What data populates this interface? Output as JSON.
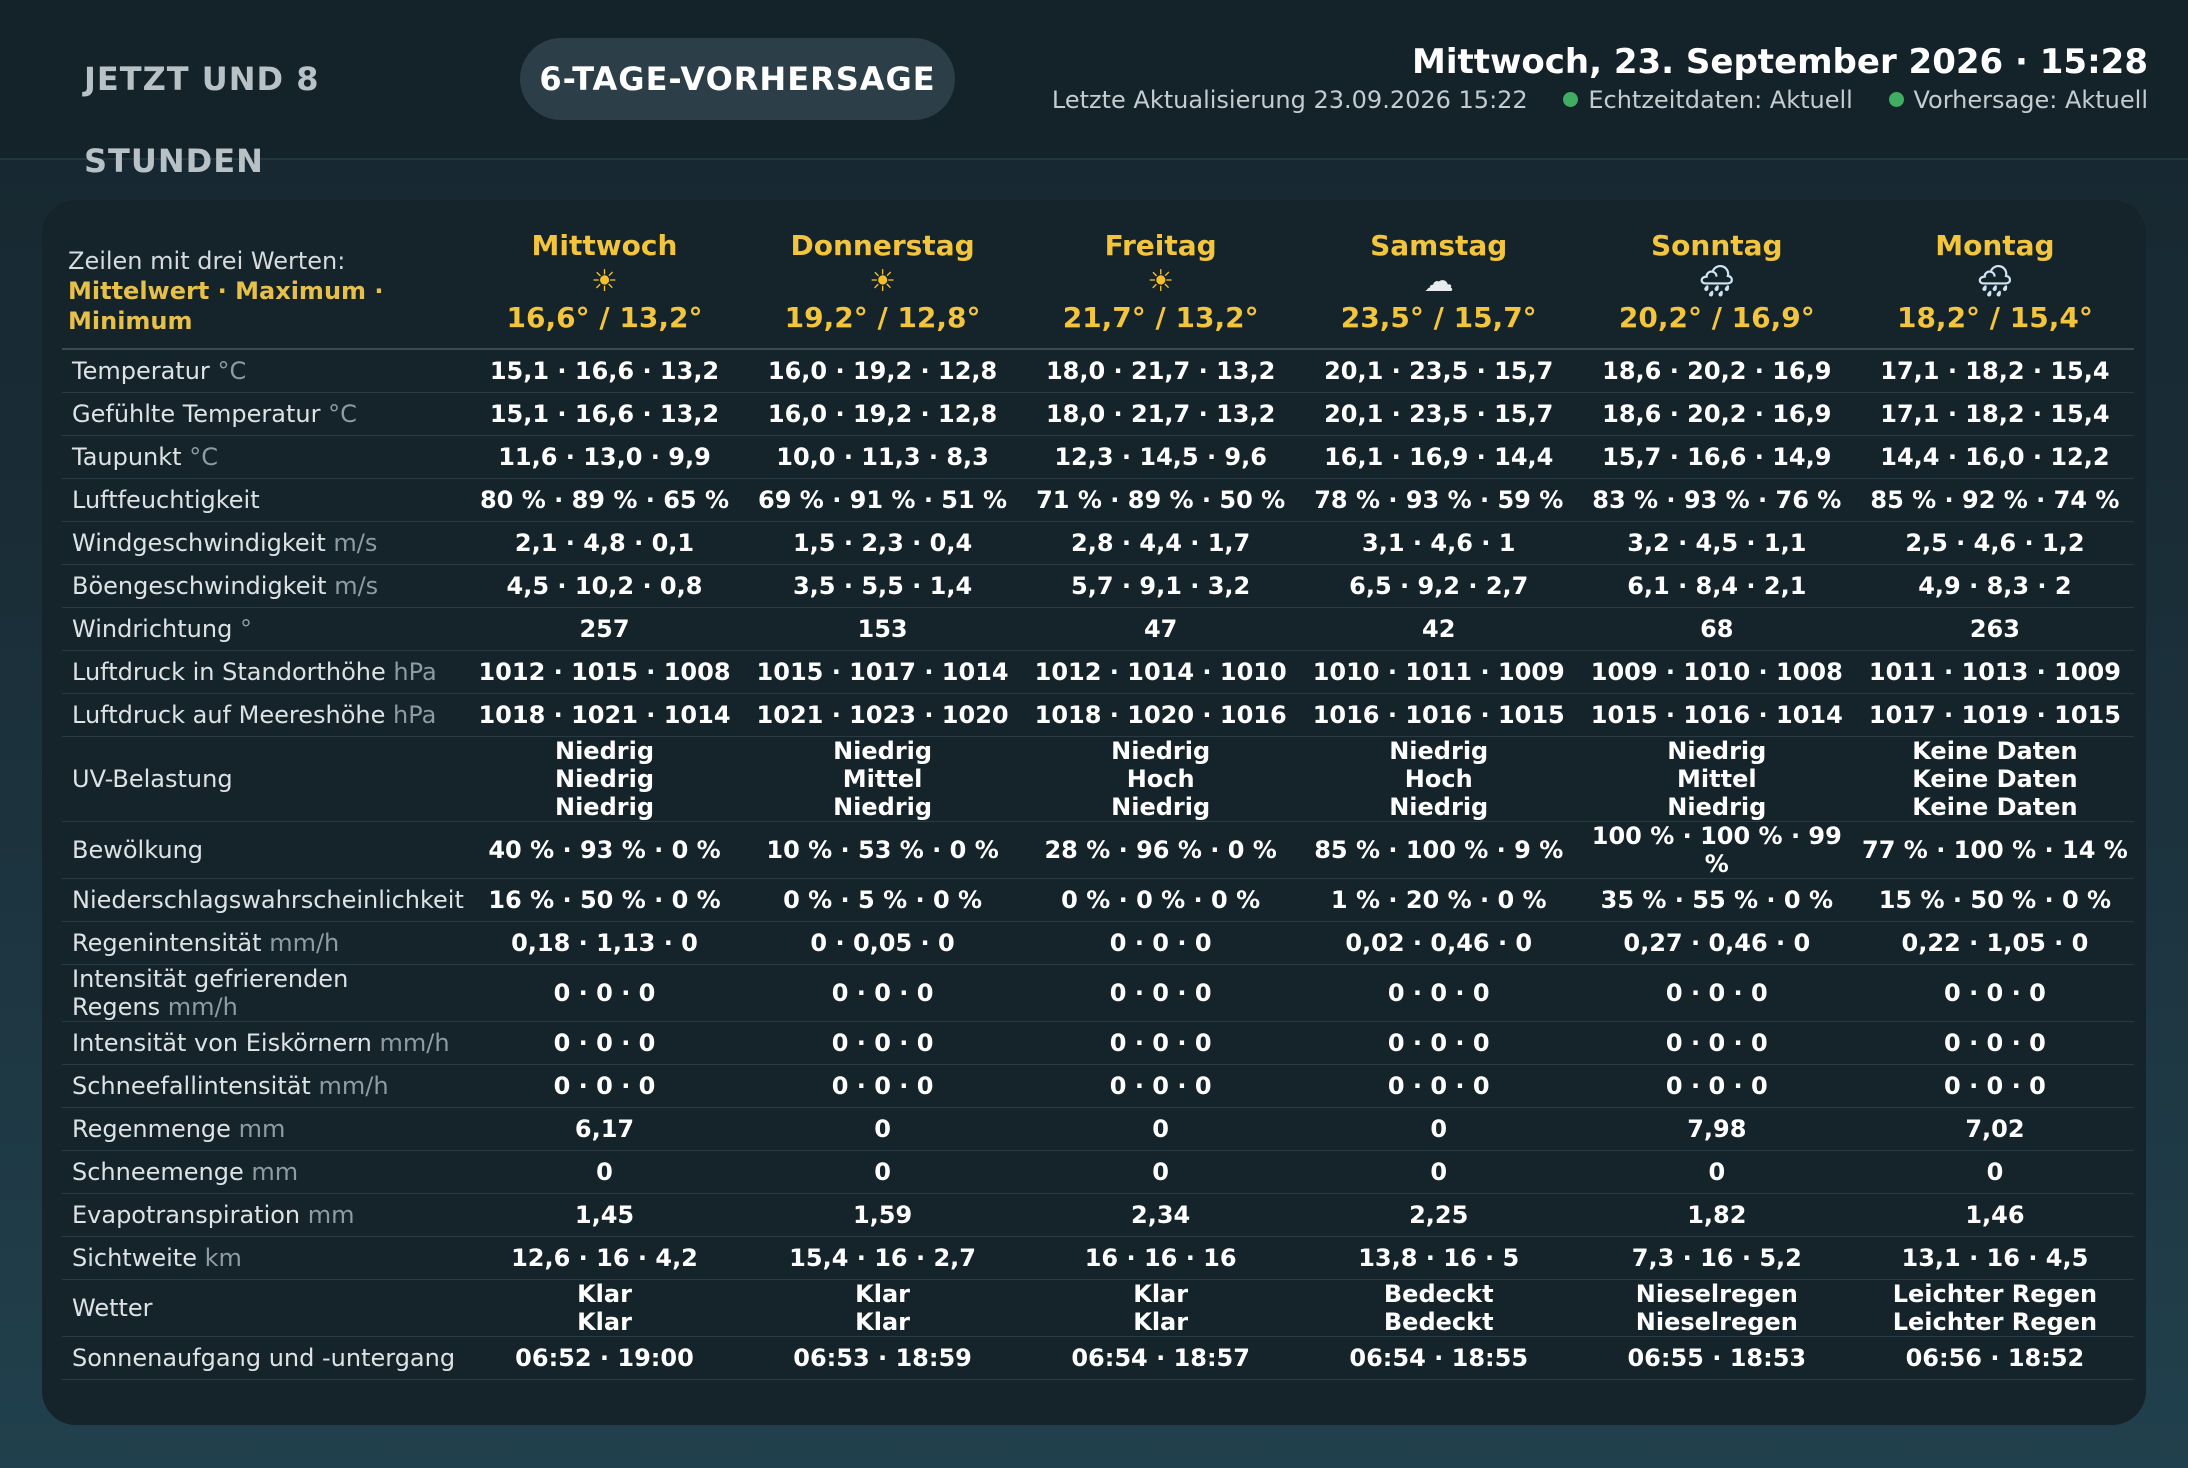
{
  "tabs": {
    "now": "JETZT UND 8 STUNDEN",
    "forecast": "6-TAGE-VORHERSAGE"
  },
  "header": {
    "datetime": "Mittwoch, 23. September 2026 · 15:28",
    "last_update": "Letzte Aktualisierung 23.09.2026 15:22",
    "realtime_status": "Echtzeitdaten: Aktuell",
    "forecast_status": "Vorhersage: Aktuell",
    "status_color": "#3fae63"
  },
  "legend": {
    "line1": "Zeilen mit drei Werten:",
    "line2": "Mittelwert · Maximum · Minimum"
  },
  "days": [
    {
      "name": "Mittwoch",
      "icon": "sun-icon",
      "glyph": "☀",
      "temps": "16,6° / 13,2°"
    },
    {
      "name": "Donnerstag",
      "icon": "sun-icon",
      "glyph": "☀",
      "temps": "19,2° / 12,8°"
    },
    {
      "name": "Freitag",
      "icon": "sun-icon",
      "glyph": "☀",
      "temps": "21,7° / 13,2°"
    },
    {
      "name": "Samstag",
      "icon": "cloud-icon",
      "glyph": "☁",
      "temps": "23,5° / 15,7°"
    },
    {
      "name": "Sonntag",
      "icon": "rain-cloud-icon",
      "glyph": "🌧",
      "temps": "20,2° / 16,9°"
    },
    {
      "name": "Montag",
      "icon": "rain-cloud-icon",
      "glyph": "🌧",
      "temps": "18,2° / 15,4°"
    }
  ],
  "rows": [
    {
      "label": "Temperatur",
      "unit": "°C",
      "values": [
        "15,1 · 16,6 · 13,2",
        "16,0 · 19,2 · 12,8",
        "18,0 · 21,7 · 13,2",
        "20,1 · 23,5 · 15,7",
        "18,6 · 20,2 · 16,9",
        "17,1 · 18,2 · 15,4"
      ]
    },
    {
      "label": "Gefühlte Temperatur",
      "unit": "°C",
      "values": [
        "15,1 · 16,6 · 13,2",
        "16,0 · 19,2 · 12,8",
        "18,0 · 21,7 · 13,2",
        "20,1 · 23,5 · 15,7",
        "18,6 · 20,2 · 16,9",
        "17,1 · 18,2 · 15,4"
      ]
    },
    {
      "label": "Taupunkt",
      "unit": "°C",
      "values": [
        "11,6 · 13,0 · 9,9",
        "10,0 · 11,3 · 8,3",
        "12,3 · 14,5 · 9,6",
        "16,1 · 16,9 · 14,4",
        "15,7 · 16,6 · 14,9",
        "14,4 · 16,0 · 12,2"
      ]
    },
    {
      "label": "Luftfeuchtigkeit",
      "unit": "",
      "values": [
        "80 % · 89 % · 65 %",
        "69 % · 91 % · 51 %",
        "71 % · 89 % · 50 %",
        "78 % · 93 % · 59 %",
        "83 % · 93 % · 76 %",
        "85 % · 92 % · 74 %"
      ]
    },
    {
      "label": "Windgeschwindigkeit",
      "unit": "m/s",
      "values": [
        "2,1 · 4,8 · 0,1",
        "1,5 · 2,3 · 0,4",
        "2,8 · 4,4 · 1,7",
        "3,1 · 4,6 · 1",
        "3,2 · 4,5 · 1,1",
        "2,5 · 4,6 · 1,2"
      ]
    },
    {
      "label": "Böengeschwindigkeit",
      "unit": "m/s",
      "values": [
        "4,5 · 10,2 · 0,8",
        "3,5 · 5,5 · 1,4",
        "5,7 · 9,1 · 3,2",
        "6,5 · 9,2 · 2,7",
        "6,1 · 8,4 · 2,1",
        "4,9 · 8,3 · 2"
      ]
    },
    {
      "label": "Windrichtung",
      "unit": "°",
      "values": [
        "257",
        "153",
        "47",
        "42",
        "68",
        "263"
      ]
    },
    {
      "label": "Luftdruck in Standorthöhe",
      "unit": "hPa",
      "values": [
        "1012 · 1015 · 1008",
        "1015 · 1017 · 1014",
        "1012 · 1014 · 1010",
        "1010 · 1011 · 1009",
        "1009 · 1010 · 1008",
        "1011 · 1013 · 1009"
      ]
    },
    {
      "label": "Luftdruck auf Meereshöhe",
      "unit": "hPa",
      "values": [
        "1018 · 1021 · 1014",
        "1021 · 1023 · 1020",
        "1018 · 1020 · 1016",
        "1016 · 1016 · 1015",
        "1015 · 1016 · 1014",
        "1017 · 1019 · 1015"
      ]
    }
  ],
  "uv": {
    "label": "UV-Belastung",
    "values": [
      [
        "Niedrig",
        "Niedrig",
        "Niedrig"
      ],
      [
        "Niedrig",
        "Mittel",
        "Niedrig"
      ],
      [
        "Niedrig",
        "Hoch",
        "Niedrig"
      ],
      [
        "Niedrig",
        "Hoch",
        "Niedrig"
      ],
      [
        "Niedrig",
        "Mittel",
        "Niedrig"
      ],
      [
        "Keine Daten",
        "Keine Daten",
        "Keine Daten"
      ]
    ]
  },
  "rows2": [
    {
      "label": "Bewölkung",
      "unit": "",
      "values": [
        "40 % · 93 % · 0 %",
        "10 % · 53 % · 0 %",
        "28 % · 96 % · 0 %",
        "85 % · 100 % · 9 %",
        "100 % · 100 % · 99 %",
        "77 % · 100 % · 14 %"
      ]
    },
    {
      "label": "Niederschlagswahrscheinlichkeit",
      "unit": "",
      "values": [
        "16 % · 50 % · 0 %",
        "0 % · 5 % · 0 %",
        "0 % · 0 % · 0 %",
        "1 % · 20 % · 0 %",
        "35 % · 55 % · 0 %",
        "15 % · 50 % · 0 %"
      ]
    },
    {
      "label": "Regenintensität",
      "unit": "mm/h",
      "values": [
        "0,18 · 1,13 · 0",
        "0 · 0,05 · 0",
        "0 · 0 · 0",
        "0,02 · 0,46 · 0",
        "0,27 · 0,46 · 0",
        "0,22 · 1,05 · 0"
      ]
    }
  ],
  "freezing": {
    "label1": "Intensität gefrierenden",
    "label2": "Regens",
    "unit": "mm/h",
    "values": [
      "0 · 0 · 0",
      "0 · 0 · 0",
      "0 · 0 · 0",
      "0 · 0 · 0",
      "0 · 0 · 0",
      "0 · 0 · 0"
    ]
  },
  "rows3": [
    {
      "label": "Intensität von Eiskörnern",
      "unit": "mm/h",
      "values": [
        "0 · 0 · 0",
        "0 · 0 · 0",
        "0 · 0 · 0",
        "0 · 0 · 0",
        "0 · 0 · 0",
        "0 · 0 · 0"
      ]
    },
    {
      "label": "Schneefallintensität",
      "unit": "mm/h",
      "values": [
        "0 · 0 · 0",
        "0 · 0 · 0",
        "0 · 0 · 0",
        "0 · 0 · 0",
        "0 · 0 · 0",
        "0 · 0 · 0"
      ]
    },
    {
      "label": "Regenmenge",
      "unit": "mm",
      "values": [
        "6,17",
        "0",
        "0",
        "0",
        "7,98",
        "7,02"
      ]
    },
    {
      "label": "Schneemenge",
      "unit": "mm",
      "values": [
        "0",
        "0",
        "0",
        "0",
        "0",
        "0"
      ]
    },
    {
      "label": "Evapotranspiration",
      "unit": "mm",
      "values": [
        "1,45",
        "1,59",
        "2,34",
        "2,25",
        "1,82",
        "1,46"
      ]
    },
    {
      "label": "Sichtweite",
      "unit": "km",
      "values": [
        "12,6 · 16 · 4,2",
        "15,4 · 16 · 2,7",
        "16 · 16 · 16",
        "13,8 · 16 · 5",
        "7,3 · 16 · 5,2",
        "13,1 · 16 · 4,5"
      ]
    }
  ],
  "weather": {
    "label": "Wetter",
    "values": [
      [
        "Klar",
        "Klar"
      ],
      [
        "Klar",
        "Klar"
      ],
      [
        "Klar",
        "Klar"
      ],
      [
        "Bedeckt",
        "Bedeckt"
      ],
      [
        "Nieselregen",
        "Nieselregen"
      ],
      [
        "Leichter Regen",
        "Leichter Regen"
      ]
    ]
  },
  "sun": {
    "label": "Sonnenaufgang und -untergang",
    "values": [
      "06:52 · 19:00",
      "06:53 · 18:59",
      "06:54 · 18:57",
      "06:54 · 18:55",
      "06:55 · 18:53",
      "06:56 · 18:52"
    ]
  }
}
